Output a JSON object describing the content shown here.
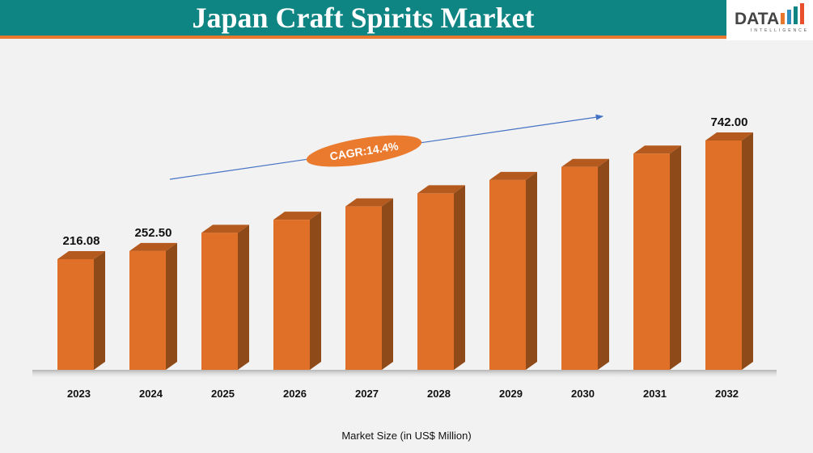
{
  "header": {
    "title": "Japan Craft Spirits Market"
  },
  "logo": {
    "text": "DATA",
    "subtext": "INTELLIGENCE"
  },
  "annotation": {
    "cagr": "CAGR:14.4%"
  },
  "colors": {
    "bar_front": "#e07028",
    "bar_side": "#8e4a19",
    "bar_top": "#b55a1e",
    "header": "#0e8583",
    "accent": "#e8782d",
    "arrow": "#4472c4"
  },
  "chart_data": {
    "type": "bar",
    "style": "3d-columns",
    "categories": [
      "2023",
      "2024",
      "2025",
      "2026",
      "2027",
      "2028",
      "2029",
      "2030",
      "2031",
      "2032"
    ],
    "values": [
      216.08,
      252.5,
      333,
      391,
      450,
      508,
      567,
      625,
      684,
      742.0
    ],
    "data_labels": [
      "216.08",
      "252.50",
      "",
      "",
      "",
      "",
      "",
      "",
      "",
      "742.00"
    ],
    "xlabel": "Market Size (in US$ Million)",
    "ylabel": "",
    "grid": false
  }
}
